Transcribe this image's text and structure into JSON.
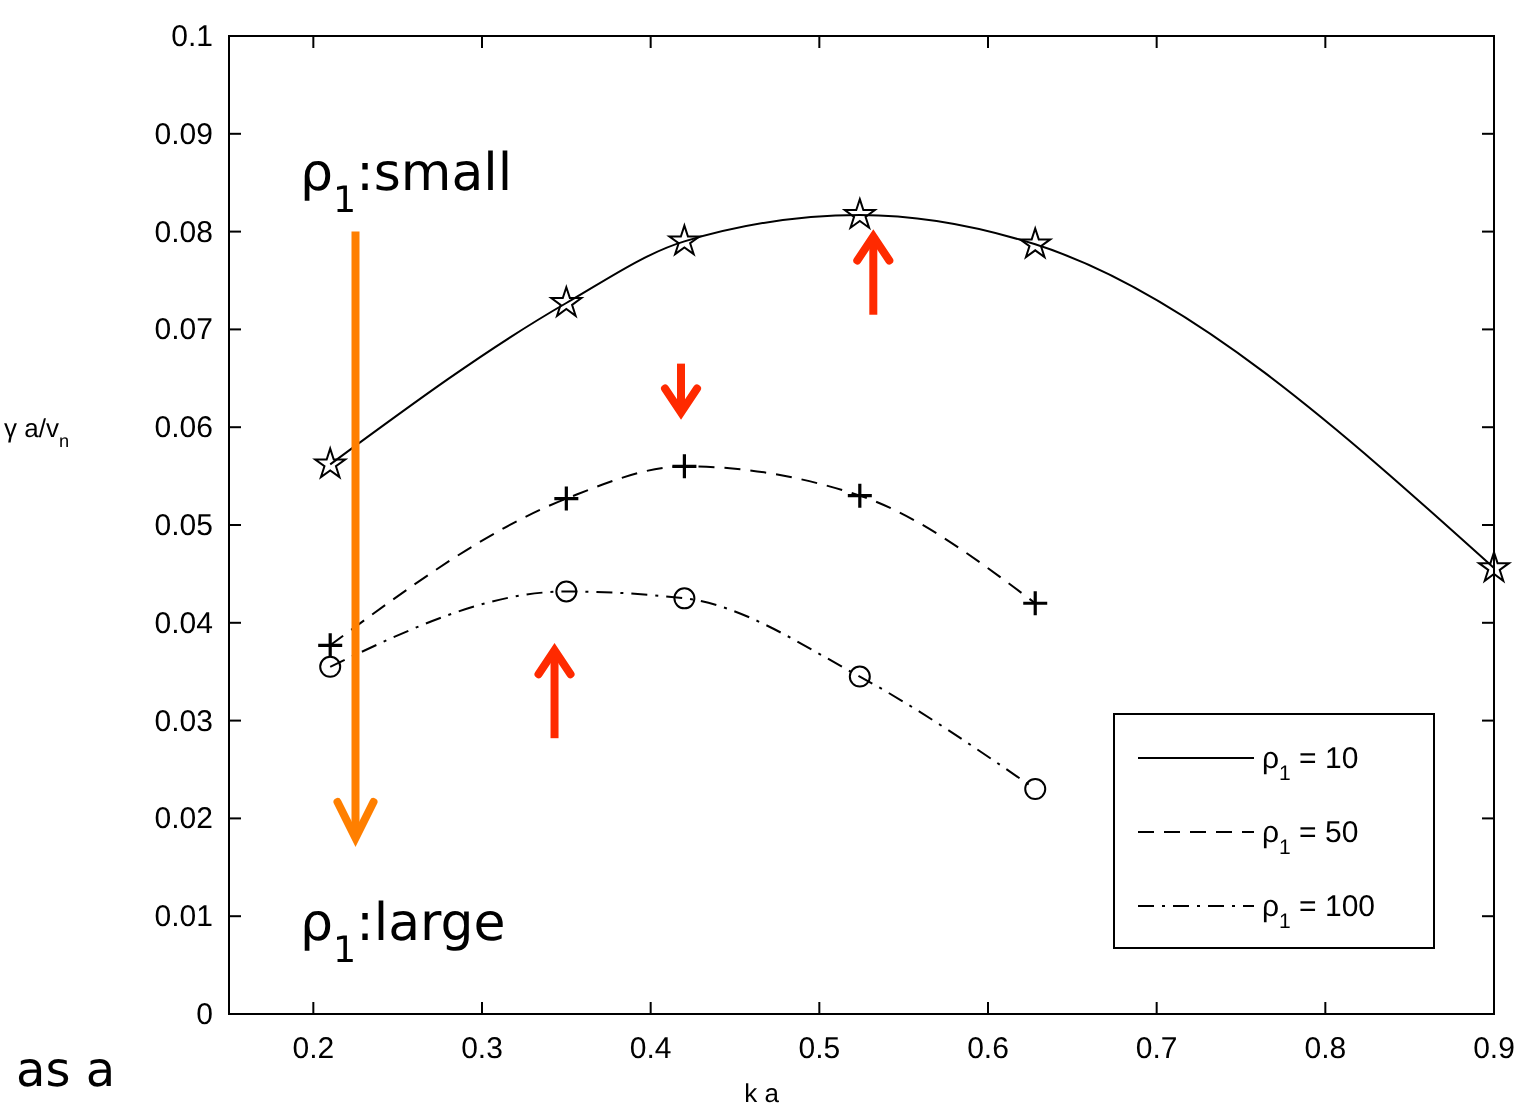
{
  "chart_data": {
    "type": "line",
    "xlabel": "k a",
    "ylabel": "γ a/v$_{n}$",
    "xlim": [
      0.15,
      0.9
    ],
    "xticks": [
      0.2,
      0.3,
      0.4,
      0.5,
      0.6,
      0.7,
      0.8,
      0.9
    ],
    "ylim": [
      0,
      0.1
    ],
    "yticks": [
      0,
      0.01,
      0.02,
      0.03,
      0.04,
      0.05,
      0.06,
      0.07,
      0.08,
      0.09,
      0.1
    ],
    "grid": false,
    "legend": "bottom right",
    "series": [
      {
        "name": "ρ$_{1}$ = 10",
        "color": "#000000",
        "marker": "star",
        "line_style": "solid",
        "x": [
          0.21,
          0.35,
          0.42,
          0.524,
          0.628,
          0.9
        ],
        "values": [
          0.0562,
          0.0727,
          0.079,
          0.0817,
          0.0787,
          0.0456
        ]
      },
      {
        "name": "ρ$_{1}$ = 50",
        "color": "#000000",
        "marker": "cross",
        "line_style": "dashed",
        "x": [
          0.21,
          0.35,
          0.42,
          0.524,
          0.628
        ],
        "values": [
          0.0377,
          0.0527,
          0.056,
          0.053,
          0.042
        ]
      },
      {
        "name": "ρ$_{1}$ = 100",
        "color": "#000000",
        "marker": "circle",
        "line_style": "dotted",
        "x": [
          0.21,
          0.35,
          0.42,
          0.524,
          0.628
        ],
        "values": [
          0.0355,
          0.0432,
          0.0425,
          0.0345,
          0.023
        ]
      }
    ],
    "annotations": [
      "ρ$_{1}$:small",
      "ρ$_{1}$:large",
      "as a"
    ]
  }
}
